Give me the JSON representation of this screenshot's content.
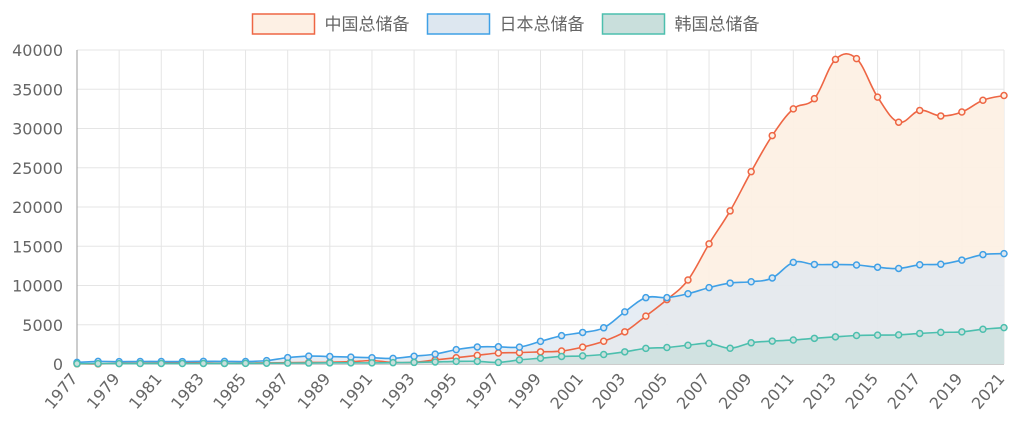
{
  "chart_data": {
    "type": "area",
    "title": "",
    "xlabel": "",
    "ylabel": "",
    "ylim": [
      0,
      40000
    ],
    "yticks": [
      "0",
      "5000",
      "10000",
      "15000",
      "20000",
      "25000",
      "30000",
      "35000",
      "40000"
    ],
    "legend_position": "top-center",
    "grid": true,
    "x": [
      1977,
      1978,
      1979,
      1980,
      1981,
      1982,
      1983,
      1984,
      1985,
      1986,
      1987,
      1988,
      1989,
      1990,
      1991,
      1992,
      1993,
      1994,
      1995,
      1996,
      1997,
      1998,
      1999,
      2000,
      2001,
      2002,
      2003,
      2004,
      2005,
      2006,
      2007,
      2008,
      2009,
      2010,
      2011,
      2012,
      2013,
      2014,
      2015,
      2016,
      2017,
      2018,
      2019,
      2020,
      2021
    ],
    "xticks": [
      "1977",
      "1979",
      "1981",
      "1983",
      "1985",
      "1987",
      "1989",
      "1991",
      "1993",
      "1995",
      "1997",
      "1999",
      "2001",
      "2003",
      "2005",
      "2007",
      "2009",
      "2011",
      "2013",
      "2015",
      "2017",
      "2019",
      "2021"
    ],
    "series": [
      {
        "name": "中国总储备",
        "color": "#ee6644",
        "fill": "#fdf0e4",
        "values": [
          24,
          15,
          84,
          100,
          140,
          170,
          130,
          90,
          120,
          140,
          170,
          200,
          220,
          290,
          430,
          200,
          220,
          520,
          800,
          1100,
          1400,
          1450,
          1550,
          1650,
          2150,
          2900,
          4100,
          6100,
          8200,
          10700,
          15300,
          19500,
          24500,
          29100,
          32500,
          33800,
          38800,
          38900,
          34000,
          30800,
          32300,
          31600,
          32100,
          33600,
          34200
        ],
        "markers": true
      },
      {
        "name": "日本总储备",
        "color": "#3fa0e6",
        "fill": "#dde7f0",
        "values": [
          200,
          330,
          300,
          320,
          320,
          310,
          340,
          330,
          320,
          430,
          810,
          1000,
          950,
          880,
          800,
          720,
          990,
          1260,
          1830,
          2170,
          2190,
          2150,
          2880,
          3610,
          4020,
          4610,
          6640,
          8450,
          8450,
          8950,
          9730,
          10310,
          10480,
          10960,
          12950,
          12680,
          12670,
          12610,
          12330,
          12170,
          12640,
          12710,
          13240,
          13940,
          14060
        ],
        "markers": true
      },
      {
        "name": "韩国总储备",
        "color": "#4cbfae",
        "fill": "#c9dfdc",
        "values": [
          40,
          50,
          50,
          60,
          70,
          60,
          70,
          70,
          80,
          100,
          110,
          120,
          150,
          150,
          140,
          170,
          200,
          260,
          330,
          340,
          200,
          520,
          740,
          960,
          1030,
          1210,
          1550,
          1990,
          2100,
          2390,
          2620,
          2010,
          2700,
          2920,
          3060,
          3270,
          3460,
          3630,
          3680,
          3710,
          3890,
          4030,
          4090,
          4430,
          4630
        ],
        "markers": true
      }
    ]
  }
}
